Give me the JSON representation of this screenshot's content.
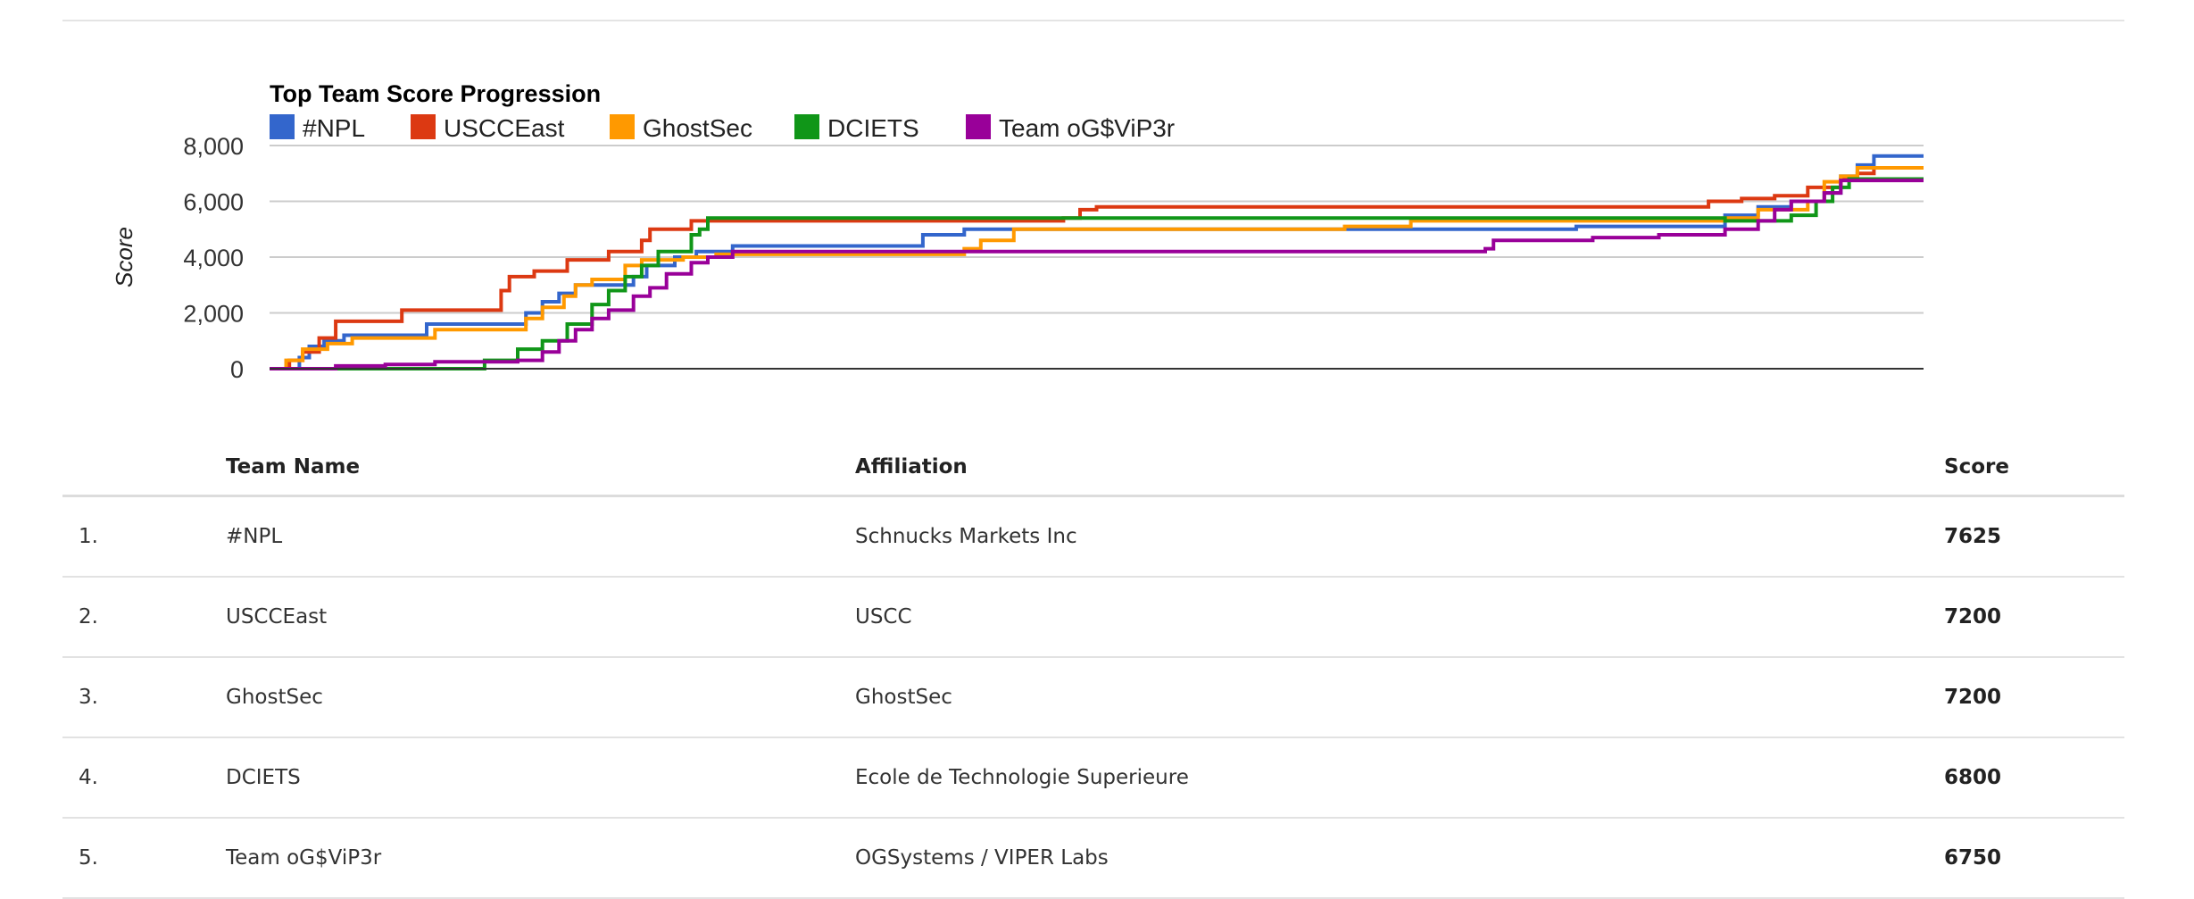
{
  "chart_data": {
    "type": "line",
    "step": true,
    "title": "Top Team Score Progression",
    "ylabel": "Score",
    "xlabel": "",
    "ylim": [
      0,
      8000
    ],
    "yticks": [
      "0",
      "2,000",
      "4,000",
      "6,000",
      "8,000"
    ],
    "ytick_values": [
      0,
      2000,
      4000,
      6000,
      8000
    ],
    "xlim": [
      0,
      100
    ],
    "grid": true,
    "legend": "top",
    "series": [
      {
        "name": "#NPL",
        "color": "#3366cc",
        "points": [
          [
            0,
            0
          ],
          [
            1.8,
            400
          ],
          [
            2.4,
            800
          ],
          [
            3.3,
            1000
          ],
          [
            4.5,
            1200
          ],
          [
            9.5,
            1600
          ],
          [
            15.5,
            2000
          ],
          [
            16.5,
            2400
          ],
          [
            17.5,
            2700
          ],
          [
            18.5,
            3000
          ],
          [
            22,
            3300
          ],
          [
            22.8,
            3700
          ],
          [
            24.5,
            4000
          ],
          [
            25.8,
            4200
          ],
          [
            28,
            4400
          ],
          [
            39.5,
            4800
          ],
          [
            42,
            5000
          ],
          [
            65,
            5000
          ],
          [
            79,
            5100
          ],
          [
            88,
            5500
          ],
          [
            90,
            5800
          ],
          [
            92,
            6000
          ],
          [
            94,
            6300
          ],
          [
            95,
            6900
          ],
          [
            96,
            7300
          ],
          [
            97,
            7625
          ],
          [
            100,
            7625
          ]
        ]
      },
      {
        "name": "USCCEast",
        "color": "#dc3912",
        "points": [
          [
            0,
            0
          ],
          [
            1.2,
            300
          ],
          [
            2,
            600
          ],
          [
            3,
            1100
          ],
          [
            4,
            1700
          ],
          [
            8,
            2100
          ],
          [
            14,
            2800
          ],
          [
            14.5,
            3300
          ],
          [
            16,
            3500
          ],
          [
            18,
            3900
          ],
          [
            20.5,
            4200
          ],
          [
            22.5,
            4600
          ],
          [
            23,
            5000
          ],
          [
            25.5,
            5300
          ],
          [
            48,
            5400
          ],
          [
            49,
            5700
          ],
          [
            50,
            5800
          ],
          [
            87,
            6000
          ],
          [
            89,
            6100
          ],
          [
            91,
            6200
          ],
          [
            93,
            6500
          ],
          [
            95,
            6800
          ],
          [
            96,
            7000
          ],
          [
            97,
            7200
          ],
          [
            100,
            7200
          ]
        ]
      },
      {
        "name": "GhostSec",
        "color": "#ff9900",
        "points": [
          [
            0,
            0
          ],
          [
            1,
            300
          ],
          [
            2,
            700
          ],
          [
            3.5,
            900
          ],
          [
            5,
            1100
          ],
          [
            10,
            1400
          ],
          [
            15.5,
            1800
          ],
          [
            16.5,
            2200
          ],
          [
            17.8,
            2600
          ],
          [
            18.5,
            3000
          ],
          [
            19.5,
            3200
          ],
          [
            21.5,
            3700
          ],
          [
            22.5,
            3900
          ],
          [
            25,
            4000
          ],
          [
            27,
            4100
          ],
          [
            42,
            4300
          ],
          [
            43,
            4600
          ],
          [
            45,
            5000
          ],
          [
            65,
            5100
          ],
          [
            69,
            5300
          ],
          [
            88,
            5400
          ],
          [
            90,
            5700
          ],
          [
            93,
            6000
          ],
          [
            94,
            6700
          ],
          [
            95,
            6900
          ],
          [
            96,
            7200
          ],
          [
            100,
            7200
          ]
        ]
      },
      {
        "name": "DCIETS",
        "color": "#109618",
        "points": [
          [
            0,
            0
          ],
          [
            12.5,
            0
          ],
          [
            13,
            300
          ],
          [
            15,
            700
          ],
          [
            16.5,
            1000
          ],
          [
            18,
            1600
          ],
          [
            19.5,
            2300
          ],
          [
            20.5,
            2800
          ],
          [
            21.5,
            3300
          ],
          [
            22.5,
            3700
          ],
          [
            23.5,
            4200
          ],
          [
            25.5,
            4800
          ],
          [
            26,
            5000
          ],
          [
            26.5,
            5400
          ],
          [
            65,
            5400
          ],
          [
            88,
            5300
          ],
          [
            92,
            5500
          ],
          [
            93.5,
            6000
          ],
          [
            94.5,
            6500
          ],
          [
            95.5,
            6800
          ],
          [
            100,
            6800
          ]
        ]
      },
      {
        "name": "Team oG$ViP3r",
        "color": "#990099",
        "points": [
          [
            0,
            0
          ],
          [
            4,
            100
          ],
          [
            7,
            150
          ],
          [
            10,
            250
          ],
          [
            15,
            300
          ],
          [
            16.5,
            600
          ],
          [
            17.5,
            1000
          ],
          [
            18.5,
            1400
          ],
          [
            19.5,
            1800
          ],
          [
            20.5,
            2100
          ],
          [
            22,
            2600
          ],
          [
            23,
            2900
          ],
          [
            24,
            3400
          ],
          [
            25.5,
            3800
          ],
          [
            26.5,
            4000
          ],
          [
            28,
            4200
          ],
          [
            73.5,
            4300
          ],
          [
            74,
            4600
          ],
          [
            80,
            4700
          ],
          [
            84,
            4800
          ],
          [
            88,
            5000
          ],
          [
            90,
            5300
          ],
          [
            91,
            5700
          ],
          [
            92,
            6000
          ],
          [
            94,
            6300
          ],
          [
            95,
            6750
          ],
          [
            100,
            6750
          ]
        ]
      }
    ]
  },
  "table": {
    "headers": {
      "rank": "",
      "team": "Team Name",
      "affiliation": "Affiliation",
      "score": "Score"
    },
    "rows": [
      {
        "rank": "1.",
        "team": "#NPL",
        "affiliation": "Schnucks Markets Inc",
        "score": "7625"
      },
      {
        "rank": "2.",
        "team": "USCCEast",
        "affiliation": "USCC",
        "score": "7200"
      },
      {
        "rank": "3.",
        "team": "GhostSec",
        "affiliation": "GhostSec",
        "score": "7200"
      },
      {
        "rank": "4.",
        "team": "DCIETS",
        "affiliation": "Ecole de Technologie Superieure",
        "score": "6800"
      },
      {
        "rank": "5.",
        "team": "Team oG$ViP3r",
        "affiliation": "OGSystems / VIPER Labs",
        "score": "6750"
      }
    ]
  }
}
